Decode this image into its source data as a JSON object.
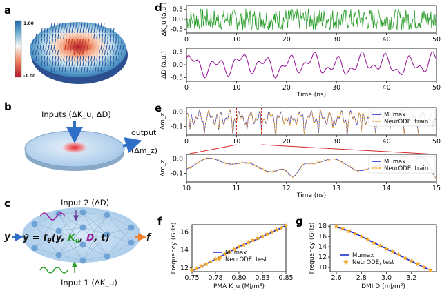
{
  "panel_labels": {
    "a": "a",
    "b": "b",
    "c": "c",
    "d": "d",
    "e": "e",
    "f": "f",
    "g": "g"
  },
  "colorbar": {
    "max": "1.00",
    "min": "-1.00",
    "colors": [
      "#b2182b",
      "#ef8a62",
      "#fddbc7",
      "#d1e5f0",
      "#67a9cf",
      "#2166ac"
    ]
  },
  "panel_b": {
    "inputs_label": "Inputs (ΔK_u, ΔD)",
    "output_label": "output",
    "output_var": "(Δm_z)"
  },
  "panel_c": {
    "input2": "Input 2 (ΔD)",
    "input1": "Input 1 (ΔK_u)",
    "y_left": "y",
    "equation_lhs": "ẏ = f",
    "theta": "θ",
    "args_open": "(y, ",
    "Ku": "K",
    "u_sub": "u",
    "comma1": ", ",
    "D": "D",
    "args_close": ", t)",
    "f_right": "f"
  },
  "colors": {
    "mumax": "#1f2fd1",
    "neurode": "#f5a623",
    "ku_signal": "#2a9d2a",
    "d_signal": "#9b1f9b",
    "red_dash": "#d62728",
    "arrow_blue": "#2f6fc7",
    "arrow_orange": "#f07f2a"
  },
  "chart_data": [
    {
      "id": "d-top",
      "type": "line",
      "ylabel": "ΔK_u (a.u.)",
      "xlim": [
        0,
        50
      ],
      "ylim": [
        -0.7,
        0.7
      ],
      "yticks": [
        "0.5",
        "0.0",
        "-0.5"
      ],
      "ytick_vals": [
        0.5,
        0,
        -0.5
      ],
      "xticks": [
        "0",
        "10",
        "20",
        "30",
        "40",
        "50"
      ],
      "series": [
        {
          "color": "#2a9d2a",
          "kind": "noise",
          "amp": 0.55,
          "n": 400
        }
      ]
    },
    {
      "id": "d-bottom",
      "type": "line",
      "ylabel": "ΔD (a.u.)",
      "xlabel": "Time (ns)",
      "xlim": [
        0,
        50
      ],
      "ylim": [
        -0.65,
        0.65
      ],
      "yticks": [
        "0.5",
        "0.0",
        "-0.5"
      ],
      "ytick_vals": [
        0.5,
        0,
        -0.5
      ],
      "xticks": [
        "0",
        "10",
        "20",
        "30",
        "40",
        "50"
      ],
      "series": [
        {
          "color": "#9b1f9b",
          "kind": "smooth",
          "amp": 0.5,
          "n": 220
        }
      ]
    },
    {
      "id": "e-top",
      "type": "line",
      "ylabel": "Δm_z",
      "xlim": [
        0,
        50
      ],
      "ylim": [
        -0.16,
        0.03
      ],
      "yticks": [
        "0.0",
        "-0.1"
      ],
      "ytick_vals": [
        0,
        -0.1
      ],
      "xticks": [
        "0",
        "10",
        "20",
        "30",
        "40",
        "50"
      ],
      "legend": [
        "Mumax",
        "NeurODE, train"
      ],
      "legend_loc": "right",
      "zoom_window": [
        10,
        15
      ],
      "series": [
        {
          "name": "Mumax",
          "color": "#1f2fd1"
        },
        {
          "name": "NeurODE, train",
          "color": "#f5a623"
        }
      ]
    },
    {
      "id": "e-bottom",
      "type": "line",
      "ylabel": "Δm_z",
      "xlabel": "Time (ns)",
      "xlim": [
        10,
        15
      ],
      "ylim": [
        -0.16,
        0.03
      ],
      "yticks": [
        "0.0",
        "-0.1"
      ],
      "ytick_vals": [
        0,
        -0.1
      ],
      "xticks": [
        "10",
        "11",
        "12",
        "13",
        "14",
        "15"
      ],
      "legend": [
        "Mumax",
        "NeurODE, train"
      ],
      "legend_loc": "right",
      "series": [
        {
          "name": "Mumax",
          "color": "#1f2fd1"
        },
        {
          "name": "NeurODE, train",
          "color": "#f5a623"
        }
      ]
    },
    {
      "id": "f",
      "type": "line",
      "xlabel": "PMA K_u (MJ/m³)",
      "ylabel": "Frequency (GHz)",
      "xlim": [
        0.75,
        0.85
      ],
      "ylim": [
        11.6,
        16.8
      ],
      "xticks": [
        "0.75",
        "0.78",
        "0.80",
        "0.83",
        "0.85"
      ],
      "xtick_vals": [
        0.75,
        0.775,
        0.8,
        0.825,
        0.85
      ],
      "yticks": [
        "12",
        "14",
        "16"
      ],
      "ytick_vals": [
        12,
        14,
        16
      ],
      "legend": [
        "Mumax",
        "NeurODE, test"
      ],
      "legend_loc": "lower right",
      "x": [
        0.75,
        0.755,
        0.76,
        0.765,
        0.77,
        0.775,
        0.78,
        0.785,
        0.79,
        0.795,
        0.8,
        0.805,
        0.81,
        0.815,
        0.82,
        0.825,
        0.83,
        0.835,
        0.84,
        0.845,
        0.85
      ],
      "series": [
        {
          "name": "Mumax",
          "values": [
            11.7,
            11.9,
            12.15,
            12.45,
            12.7,
            12.95,
            13.25,
            13.5,
            13.8,
            14.05,
            14.35,
            14.55,
            14.8,
            15.05,
            15.2,
            15.5,
            15.7,
            15.95,
            16.2,
            16.45,
            16.7
          ]
        },
        {
          "name": "NeurODE, test",
          "values": [
            11.75,
            11.95,
            12.2,
            12.45,
            12.75,
            13.0,
            13.25,
            13.55,
            13.8,
            14.1,
            14.35,
            14.6,
            14.85,
            15.1,
            15.35,
            15.55,
            15.8,
            16.0,
            16.25,
            16.45,
            16.7
          ]
        }
      ]
    },
    {
      "id": "g",
      "type": "line",
      "xlabel": "DMI D (mJ/m²)",
      "ylabel": "Frequency (GHz)",
      "xlim": [
        2.55,
        3.4
      ],
      "ylim": [
        9.2,
        18.3
      ],
      "xticks": [
        "2.6",
        "2.8",
        "3.0",
        "3.2"
      ],
      "xtick_vals": [
        2.6,
        2.8,
        3.0,
        3.2
      ],
      "yticks": [
        "10",
        "12",
        "14",
        "16",
        "18"
      ],
      "ytick_vals": [
        10,
        12,
        14,
        16,
        18
      ],
      "legend": [
        "Mumax",
        "NeurODE, test"
      ],
      "legend_loc": "lower left",
      "x": [
        2.6,
        2.65,
        2.7,
        2.75,
        2.8,
        2.85,
        2.9,
        2.95,
        3.0,
        3.05,
        3.1,
        3.15,
        3.2,
        3.25,
        3.3,
        3.35
      ],
      "series": [
        {
          "name": "Mumax",
          "values": [
            17.9,
            17.5,
            17.1,
            16.6,
            16.0,
            15.4,
            14.8,
            14.2,
            13.6,
            13.0,
            12.4,
            11.8,
            11.2,
            10.6,
            10.0,
            9.5
          ]
        },
        {
          "name": "NeurODE, test",
          "values": [
            17.95,
            17.55,
            17.1,
            16.55,
            16.0,
            15.45,
            14.85,
            14.25,
            13.6,
            13.05,
            12.45,
            11.85,
            11.25,
            10.65,
            10.05,
            9.5
          ]
        }
      ]
    }
  ]
}
